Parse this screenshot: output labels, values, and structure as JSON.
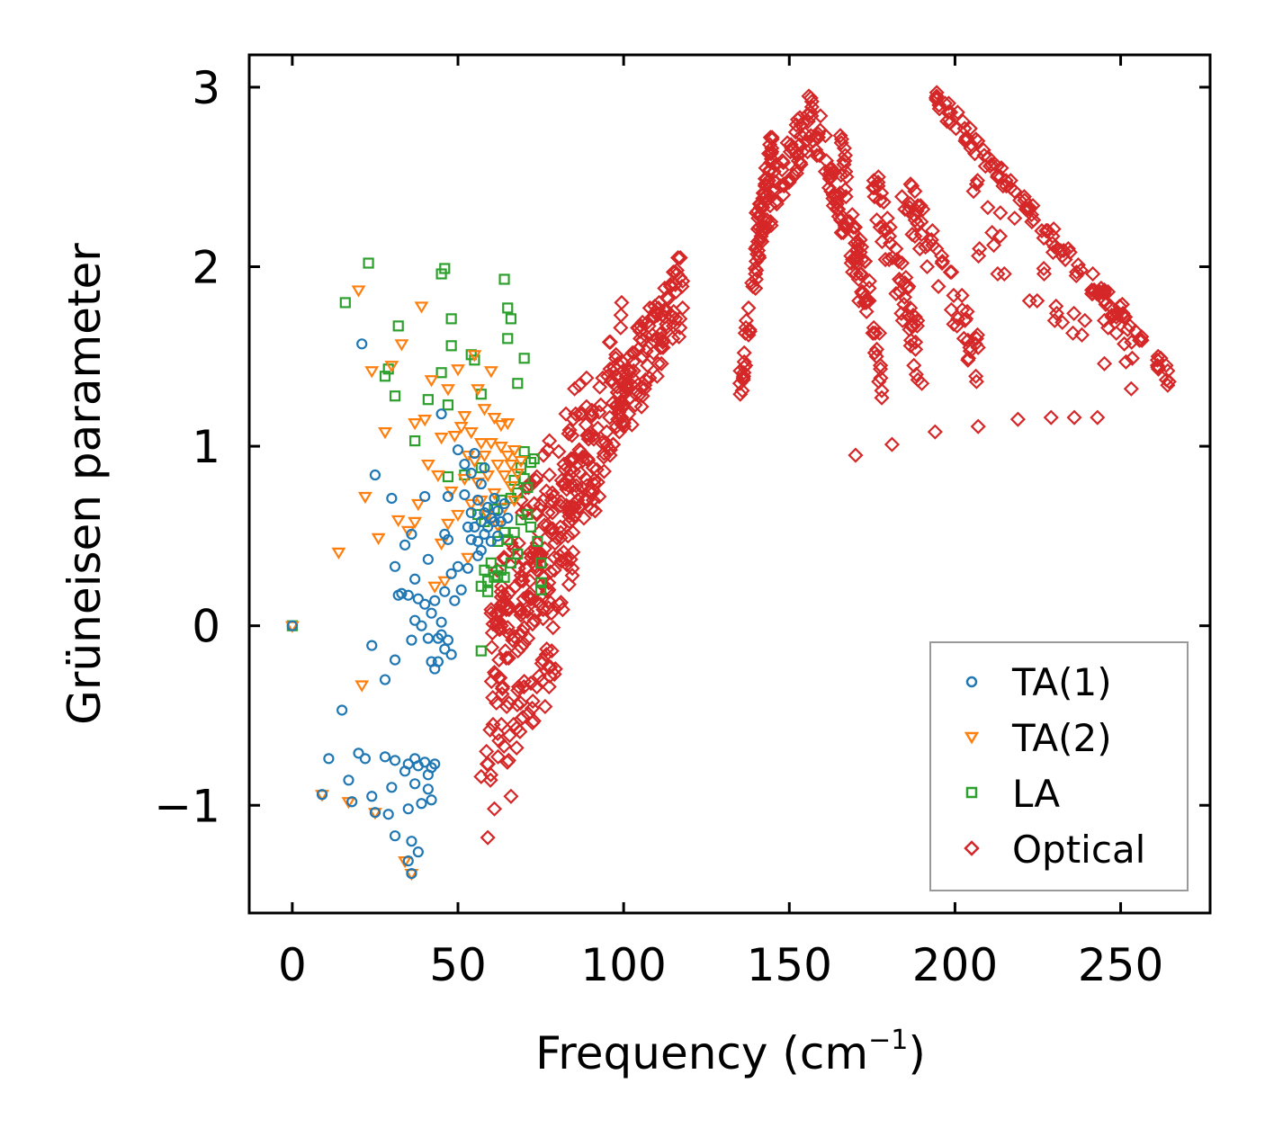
{
  "chart_data": {
    "type": "scatter",
    "xlabel": "Frequency (cm",
    "xlabel_sup": "−1",
    "xlabel_close": ")",
    "ylabel": "Grüneisen parameter",
    "xlim": [
      -13,
      277
    ],
    "ylim": [
      -1.6,
      3.18
    ],
    "xticks": [
      0,
      50,
      100,
      150,
      200,
      250
    ],
    "yticks": [
      -1,
      0,
      1,
      2,
      3
    ],
    "xtick_labels": [
      "0",
      "50",
      "100",
      "150",
      "200",
      "250"
    ],
    "ytick_labels": [
      "−1",
      "0",
      "1",
      "2",
      "3"
    ],
    "legend_position": "lower-right",
    "series": [
      {
        "name": "TA(1)",
        "marker": "circle",
        "color": "#1f77b4",
        "points": [
          [
            0,
            0
          ],
          [
            9,
            -0.94
          ],
          [
            11,
            -0.74
          ],
          [
            15,
            -0.47
          ],
          [
            17,
            -0.86
          ],
          [
            18,
            -0.98
          ],
          [
            20,
            -0.71
          ],
          [
            21,
            1.57
          ],
          [
            22,
            -0.74
          ],
          [
            24,
            -0.95
          ],
          [
            24,
            -0.11
          ],
          [
            25,
            -1.04
          ],
          [
            25,
            0.84
          ],
          [
            28,
            -0.73
          ],
          [
            28,
            -0.3
          ],
          [
            29,
            -1.05
          ],
          [
            30,
            0.71
          ],
          [
            30,
            -0.9
          ],
          [
            31,
            0.33
          ],
          [
            31,
            -0.75
          ],
          [
            31,
            -1.17
          ],
          [
            31,
            -0.19
          ],
          [
            32,
            0.17
          ],
          [
            33,
            0.18
          ],
          [
            34,
            -0.81
          ],
          [
            34,
            0.45
          ],
          [
            35,
            -1.02
          ],
          [
            35,
            -1.31
          ],
          [
            35,
            0.17
          ],
          [
            35,
            -0.77
          ],
          [
            36,
            -1.38
          ],
          [
            36,
            -1.2
          ],
          [
            36,
            0.51
          ],
          [
            36,
            -0.08
          ],
          [
            37,
            -0.88
          ],
          [
            37,
            0.03
          ],
          [
            37,
            -0.74
          ],
          [
            37,
            0.26
          ],
          [
            38,
            -1.26
          ],
          [
            38,
            -0.78
          ],
          [
            38,
            0.15
          ],
          [
            39,
            -0.99
          ],
          [
            39,
            0.0
          ],
          [
            40,
            -0.76
          ],
          [
            40,
            0.72
          ],
          [
            40,
            0.12
          ],
          [
            41,
            -0.83
          ],
          [
            41,
            -0.91
          ],
          [
            41,
            0.37
          ],
          [
            41,
            -0.07
          ],
          [
            42,
            -0.79
          ],
          [
            42,
            -0.97
          ],
          [
            42,
            -0.2
          ],
          [
            42,
            0.07
          ],
          [
            43,
            -0.77
          ],
          [
            43,
            0.14
          ],
          [
            43,
            -0.24
          ],
          [
            44,
            -0.07
          ],
          [
            44,
            -0.2
          ],
          [
            45,
            1.18
          ],
          [
            45,
            -0.05
          ],
          [
            45,
            0.02
          ],
          [
            46,
            0.19
          ],
          [
            46,
            0.51
          ],
          [
            46,
            -0.13
          ],
          [
            47,
            0.72
          ],
          [
            47,
            -0.08
          ],
          [
            47,
            0.48
          ],
          [
            48,
            -0.16
          ],
          [
            48,
            0.29
          ],
          [
            49,
            0.14
          ],
          [
            50,
            0.98
          ],
          [
            50,
            0.33
          ],
          [
            51,
            0.2
          ],
          [
            52,
            0.9
          ],
          [
            52,
            0.73
          ],
          [
            53,
            0.55
          ],
          [
            53,
            0.32
          ],
          [
            54,
            0.85
          ],
          [
            54,
            0.48
          ],
          [
            54,
            0.63
          ],
          [
            55,
            0.96
          ],
          [
            55,
            0.55
          ],
          [
            56,
            0.47
          ],
          [
            56,
            0.7
          ],
          [
            56,
            0.39
          ],
          [
            57,
            0.58
          ],
          [
            57,
            0.79
          ],
          [
            57,
            0.42
          ],
          [
            58,
            0.63
          ],
          [
            58,
            0.51
          ],
          [
            58,
            0.88
          ],
          [
            59,
            0.66
          ],
          [
            59,
            0.55
          ],
          [
            60,
            0.6
          ],
          [
            60,
            0.47
          ],
          [
            61,
            0.71
          ],
          [
            61,
            0.58
          ],
          [
            62,
            0.5
          ],
          [
            62,
            0.64
          ],
          [
            63,
            0.58
          ],
          [
            64,
            0.68
          ],
          [
            65,
            0.6
          ]
        ]
      },
      {
        "name": "TA(2)",
        "marker": "triangle-down",
        "color": "#ff7f0e",
        "points": [
          [
            0,
            0
          ],
          [
            9,
            -0.94
          ],
          [
            14,
            0.41
          ],
          [
            17,
            -0.98
          ],
          [
            20,
            1.87
          ],
          [
            21,
            -0.33
          ],
          [
            22,
            0.72
          ],
          [
            24,
            1.42
          ],
          [
            25,
            -1.04
          ],
          [
            26,
            0.49
          ],
          [
            28,
            1.08
          ],
          [
            30,
            1.45
          ],
          [
            32,
            0.59
          ],
          [
            33,
            1.57
          ],
          [
            34,
            -1.31
          ],
          [
            35,
            0.53
          ],
          [
            36,
            -1.38
          ],
          [
            37,
            1.13
          ],
          [
            37,
            0.58
          ],
          [
            38,
            0.68
          ],
          [
            39,
            1.78
          ],
          [
            40,
            1.15
          ],
          [
            41,
            0.9
          ],
          [
            42,
            1.37
          ],
          [
            43,
            0.22
          ],
          [
            44,
            0.84
          ],
          [
            45,
            0.46
          ],
          [
            45,
            1.05
          ],
          [
            46,
            0.25
          ],
          [
            47,
            0.57
          ],
          [
            47,
            1.32
          ],
          [
            48,
            0.75
          ],
          [
            49,
            1.06
          ],
          [
            50,
            0.62
          ],
          [
            50,
            1.43
          ],
          [
            51,
            1.11
          ],
          [
            52,
            0.82
          ],
          [
            52,
            1.17
          ],
          [
            53,
            0.38
          ],
          [
            53,
            0.95
          ],
          [
            54,
            0.68
          ],
          [
            54,
            1.08
          ],
          [
            55,
            0.92
          ],
          [
            55,
            1.51
          ],
          [
            56,
            0.8
          ],
          [
            56,
            1.32
          ],
          [
            57,
            0.7
          ],
          [
            57,
            1.02
          ],
          [
            58,
            0.95
          ],
          [
            58,
            1.21
          ],
          [
            59,
            0.62
          ],
          [
            59,
            0.84
          ],
          [
            60,
            1.02
          ],
          [
            60,
            1.42
          ],
          [
            61,
            0.74
          ],
          [
            61,
            1.16
          ],
          [
            62,
            0.9
          ],
          [
            62,
            0.56
          ],
          [
            63,
            1.0
          ],
          [
            63,
            1.12
          ],
          [
            64,
            0.84
          ],
          [
            64,
            0.66
          ],
          [
            65,
            0.95
          ],
          [
            65,
            1.13
          ],
          [
            66,
            0.78
          ],
          [
            66,
            0.9
          ],
          [
            67,
            0.7
          ],
          [
            67,
            0.98
          ],
          [
            68,
            0.85
          ],
          [
            69,
            0.92
          ]
        ]
      },
      {
        "name": "LA",
        "marker": "square",
        "color": "#2ca02c",
        "points": [
          [
            0,
            0
          ],
          [
            16,
            1.8
          ],
          [
            23,
            2.02
          ],
          [
            28,
            1.39
          ],
          [
            29,
            1.43
          ],
          [
            31,
            1.28
          ],
          [
            32,
            1.67
          ],
          [
            37,
            1.03
          ],
          [
            41,
            1.26
          ],
          [
            45,
            1.41
          ],
          [
            45,
            1.96
          ],
          [
            46,
            1.99
          ],
          [
            47,
            0.83
          ],
          [
            47,
            1.23
          ],
          [
            48,
            1.56
          ],
          [
            48,
            1.71
          ],
          [
            52,
            0.84
          ],
          [
            54,
            1.51
          ],
          [
            55,
            1.48
          ],
          [
            56,
            0.62
          ],
          [
            57,
            0.22
          ],
          [
            57,
            1.29
          ],
          [
            57,
            0.88
          ],
          [
            58,
            0.31
          ],
          [
            58,
            0.58
          ],
          [
            59,
            0.25
          ],
          [
            59,
            0.19
          ],
          [
            60,
            0.35
          ],
          [
            61,
            0.65
          ],
          [
            61,
            0.27
          ],
          [
            62,
            0.47
          ],
          [
            62,
            0.28
          ],
          [
            63,
            0.31
          ],
          [
            63,
            0.7
          ],
          [
            64,
            0.27
          ],
          [
            64,
            0.52
          ],
          [
            64,
            1.93
          ],
          [
            65,
            0.48
          ],
          [
            65,
            1.77
          ],
          [
            65,
            1.6
          ],
          [
            66,
            0.71
          ],
          [
            66,
            1.71
          ],
          [
            66,
            0.35
          ],
          [
            67,
            0.81
          ],
          [
            67,
            0.52
          ],
          [
            68,
            0.74
          ],
          [
            68,
            0.4
          ],
          [
            68,
            1.35
          ],
          [
            69,
            0.88
          ],
          [
            69,
            0.59
          ],
          [
            70,
            0.82
          ],
          [
            70,
            1.49
          ],
          [
            70,
            0.97
          ],
          [
            71,
            0.62
          ],
          [
            71,
            0.77
          ],
          [
            72,
            0.55
          ],
          [
            72,
            0.91
          ],
          [
            73,
            0.93
          ],
          [
            74,
            0.47
          ],
          [
            75,
            0.2
          ],
          [
            75,
            0.35
          ],
          [
            75,
            0.24
          ],
          [
            57,
            -0.14
          ]
        ]
      },
      {
        "name": "Optical",
        "marker": "diamond",
        "color": "#d62728",
        "points": []
      }
    ]
  },
  "legend": {
    "items": [
      {
        "label": "TA(1)",
        "color": "#1f77b4"
      },
      {
        "label": "TA(2)",
        "color": "#ff7f0e"
      },
      {
        "label": "LA",
        "color": "#2ca02c"
      },
      {
        "label": "Optical",
        "color": "#d62728"
      }
    ]
  }
}
